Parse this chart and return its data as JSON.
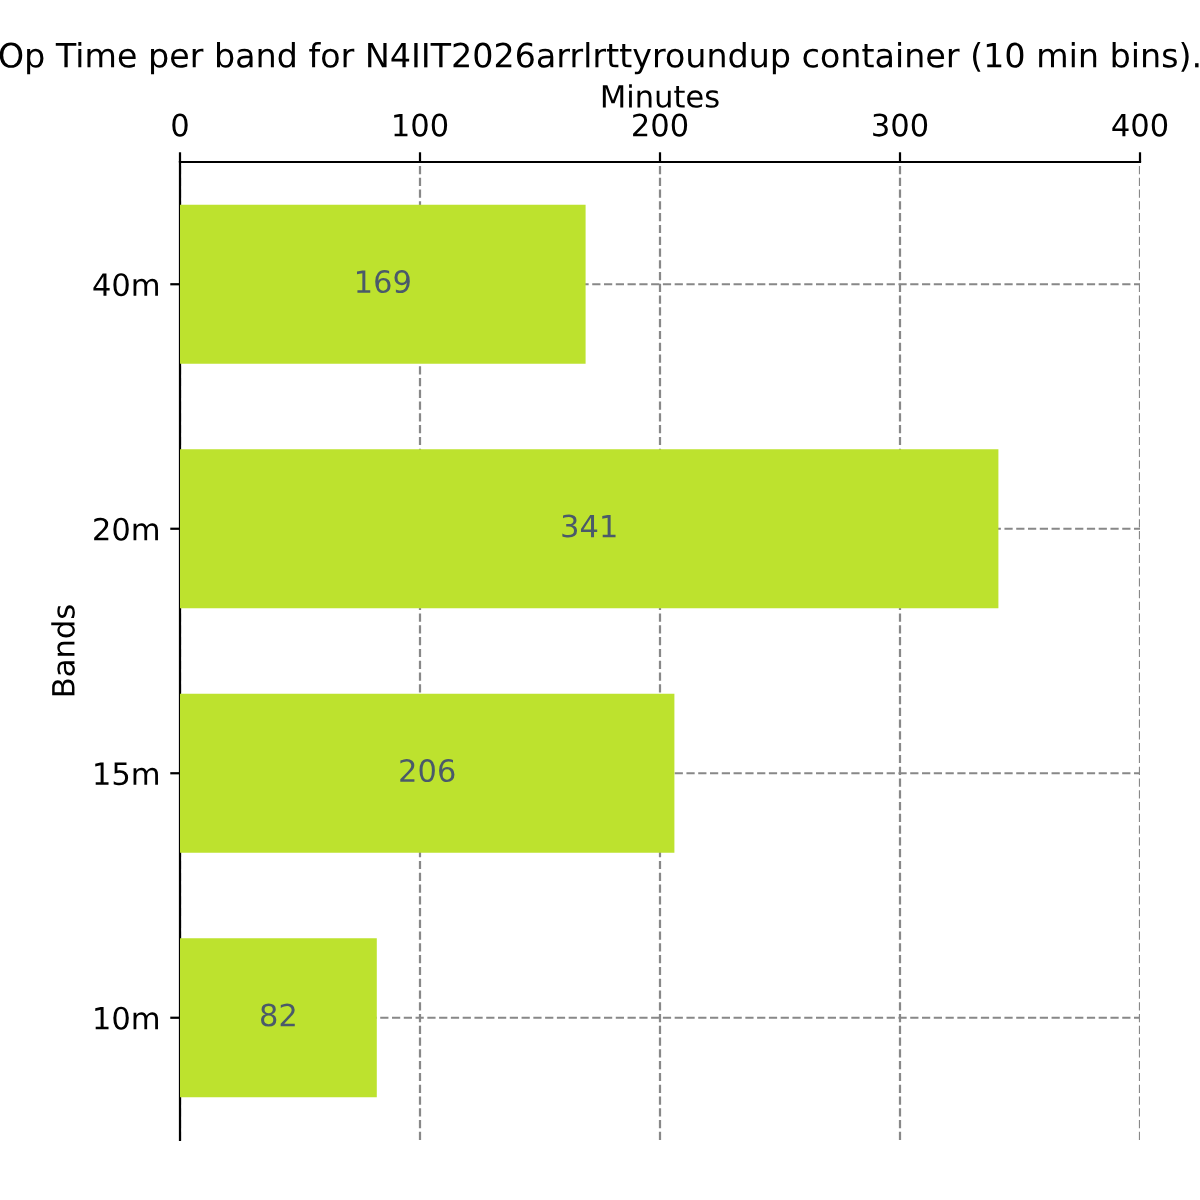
{
  "chart_data": {
    "type": "bar",
    "orientation": "horizontal",
    "title": "Op Time per band for N4IIT2026arrlrttyroundup container (10 min bins).",
    "xlabel": "Minutes",
    "ylabel": "Bands",
    "categories": [
      "40m",
      "20m",
      "15m",
      "10m"
    ],
    "values": [
      169,
      341,
      206,
      82
    ],
    "color": "#bde22e",
    "data_labels": true,
    "xlim": [
      0,
      400
    ],
    "xticks": [
      0,
      100,
      200,
      300,
      400
    ],
    "grid": true,
    "legend": false
  }
}
